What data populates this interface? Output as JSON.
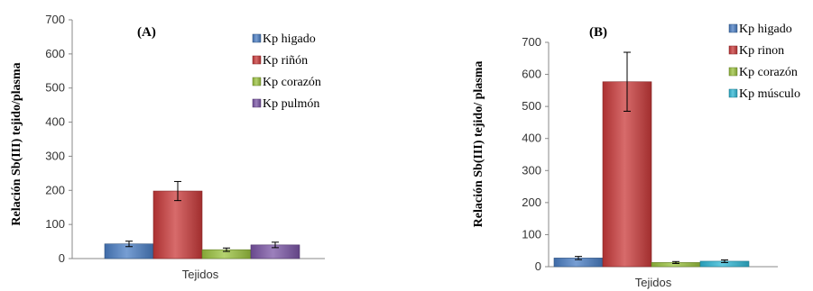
{
  "chart_data": [
    {
      "type": "bar",
      "panel": "(A)",
      "categories": [
        "Tejidos"
      ],
      "series": [
        {
          "name": "Kp higado",
          "value": 43,
          "error": 8,
          "color": "#4a7ec4"
        },
        {
          "name": "Kp riñón",
          "value": 198,
          "error": 28,
          "color": "#c9393a"
        },
        {
          "name": "Kp corazón",
          "value": 26,
          "error": 5,
          "color": "#9bc33f"
        },
        {
          "name": "Kp pulmón",
          "value": 40,
          "error": 8,
          "color": "#7b55a6"
        }
      ],
      "xlabel": "Tejidos",
      "ylabel": "Relación Sb(III) tejido/plasma",
      "ylim": [
        0,
        700
      ],
      "yticks": [
        "0",
        "100",
        "200",
        "300",
        "400",
        "500",
        "600",
        "700"
      ],
      "legend_position": "top-right",
      "grid": false
    },
    {
      "type": "bar",
      "panel": "(B)",
      "categories": [
        "Tejidos"
      ],
      "series": [
        {
          "name": "Kp higado",
          "value": 27,
          "error": 5,
          "color": "#4a7ec4"
        },
        {
          "name": "Kp rinon",
          "value": 577,
          "error": 92,
          "color": "#c9393a"
        },
        {
          "name": "Kp corazón",
          "value": 13,
          "error": 3,
          "color": "#9bc33f"
        },
        {
          "name": "Kp músculo",
          "value": 17,
          "error": 4,
          "color": "#2fb8d6"
        }
      ],
      "xlabel": "Tejidos",
      "ylabel": "Relación Sb(III) tejido/ plasma",
      "ylim": [
        0,
        700
      ],
      "yticks": [
        "0",
        "100",
        "200",
        "300",
        "400",
        "500",
        "600",
        "700"
      ],
      "legend_position": "top-right",
      "grid": false
    }
  ]
}
